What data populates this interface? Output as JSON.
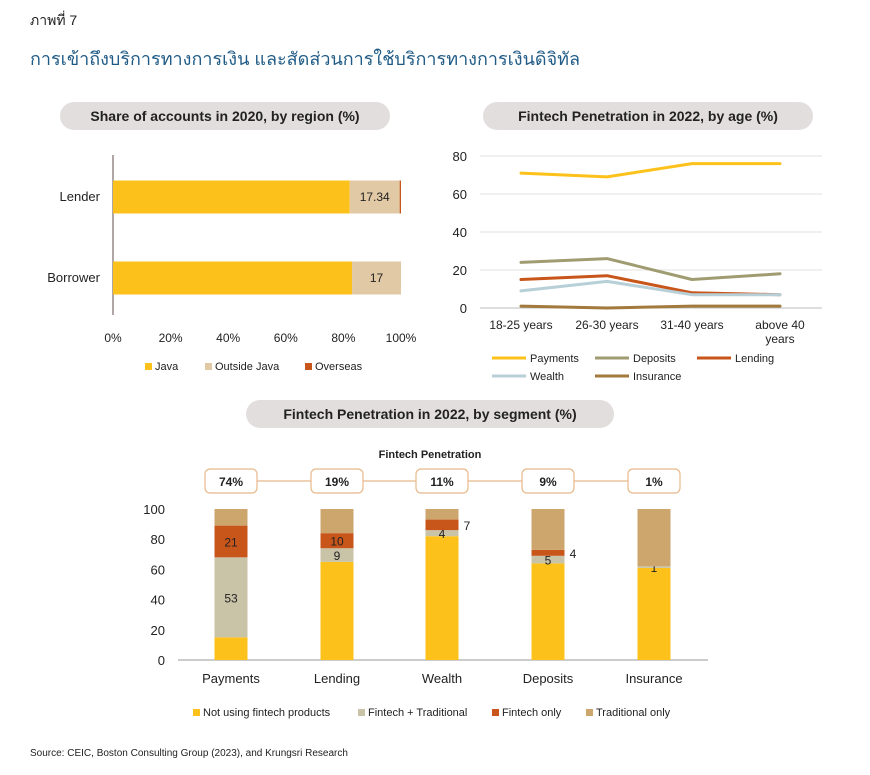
{
  "figure_label": "ภาพที่ 7",
  "figure_title": "การเข้าถึงบริการทางการเงิน และสัดส่วนการใช้บริการทางการเงินดิจิทัล",
  "source": "Source: CEIC, Boston Consulting Group (2023), and Krungsri Research",
  "colors": {
    "gold": "#fcc21b",
    "beige": "#e2c9a5",
    "orange": "#c8561b",
    "olive": "#a09c71",
    "lightblue": "#b7cfd7",
    "brown": "#a37a3e",
    "gray_green": "#c9c3a8",
    "tan": "#cda66e",
    "pill_bg": "#e2dedd",
    "title_blue": "#1f5b86"
  },
  "chart_data": [
    {
      "type": "bar",
      "orientation": "horizontal",
      "stacked": true,
      "title": "Share of accounts in 2020, by region (%)",
      "categories": [
        "Lender",
        "Borrower"
      ],
      "series": [
        {
          "name": "Java",
          "values": [
            82.2,
            83.0
          ],
          "color": "#fcc21b"
        },
        {
          "name": "Outside Java",
          "values": [
            17.34,
            17
          ],
          "color": "#e2c9a5"
        },
        {
          "name": "Overseas",
          "values": [
            0.46,
            0
          ],
          "color": "#c8561b"
        }
      ],
      "data_labels": [
        "17.34",
        "17"
      ],
      "xlim": [
        0,
        100
      ],
      "xticks": [
        "0%",
        "20%",
        "40%",
        "60%",
        "80%",
        "100%"
      ],
      "legend_position": "bottom"
    },
    {
      "type": "line",
      "title": "Fintech Penetration in 2022, by age (%)",
      "categories": [
        "18-25 years",
        "26-30 years",
        "31-40 years",
        "above 40 years"
      ],
      "category_lines": [
        [
          "18-25 years"
        ],
        [
          "26-30 years"
        ],
        [
          "31-40 years"
        ],
        [
          "above 40",
          "years"
        ]
      ],
      "series": [
        {
          "name": "Payments",
          "values": [
            71,
            69,
            76,
            76
          ],
          "color": "#fcc21b"
        },
        {
          "name": "Deposits",
          "values": [
            24,
            26,
            15,
            18
          ],
          "color": "#a09c71"
        },
        {
          "name": "Lending",
          "values": [
            15,
            17,
            8,
            7
          ],
          "color": "#c8561b"
        },
        {
          "name": "Wealth",
          "values": [
            9,
            14,
            7,
            7
          ],
          "color": "#b7cfd7"
        },
        {
          "name": "Insurance",
          "values": [
            1,
            0,
            1,
            1
          ],
          "color": "#a37a3e"
        }
      ],
      "ylim": [
        0,
        80
      ],
      "yticks": [
        "0",
        "20",
        "40",
        "60",
        "80"
      ],
      "grid": true,
      "legend_position": "bottom"
    },
    {
      "type": "bar",
      "stacked": true,
      "title": "Fintech Penetration in 2022, by segment (%)",
      "subtitle": "Fintech Penetration",
      "categories": [
        "Payments",
        "Lending",
        "Wealth",
        "Deposits",
        "Insurance"
      ],
      "penetration_labels": [
        "74%",
        "19%",
        "11%",
        "9%",
        "1%"
      ],
      "series": [
        {
          "name": "Not using fintech products",
          "values": [
            15,
            65,
            82,
            64,
            61
          ],
          "color": "#fcc21b"
        },
        {
          "name": "Fintech + Traditional",
          "values": [
            53,
            9,
            4,
            5,
            1
          ],
          "color": "#c9c3a8"
        },
        {
          "name": "Fintech only",
          "values": [
            21,
            10,
            7,
            4,
            0
          ],
          "color": "#c8561b"
        },
        {
          "name": "Traditional only",
          "values": [
            11,
            16,
            7,
            27,
            38
          ],
          "color": "#cda66e"
        }
      ],
      "data_labels": {
        "Fintech + Traditional": [
          "53",
          "9",
          "4",
          "5",
          "1"
        ],
        "Fintech only": [
          "21",
          "10",
          "7",
          "4",
          ""
        ]
      },
      "ylim": [
        0,
        100
      ],
      "yticks": [
        "0",
        "20",
        "40",
        "60",
        "80",
        "100"
      ],
      "legend_position": "bottom"
    }
  ]
}
